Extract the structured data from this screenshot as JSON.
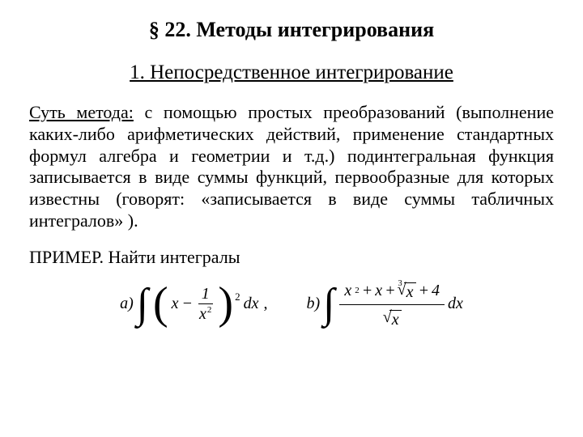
{
  "title": "§ 22.  Методы  интегрирования",
  "subtitle": "1.  Непосредственное интегрирование",
  "body_lead": "Суть метода:",
  "body_rest": " с помощью простых преобразований (выполнение каких-либо арифметических действий, применение стандартных формул алгебра и геометрии и т.д.) подинтегральная функция записывается в виде суммы функций, первообразные для которых известны (говорят: «записывается в виде суммы табличных интегралов» ).",
  "example_label": "ПРИМЕР. Найти интегралы",
  "fa_label": "a)",
  "fa_x": "x",
  "fa_minus": " − ",
  "fa_num": "1",
  "fa_den_x": "x",
  "fa_den_exp": "2",
  "fa_outer_exp": "2",
  "fa_dx": "dx",
  "fa_comma": ",",
  "fb_label": "b)",
  "fb_t1_x": "x",
  "fb_t1_exp": "2",
  "fb_plus1": " + ",
  "fb_t2": "x",
  "fb_plus2": " + ",
  "fb_root_idx": "3",
  "fb_root_body": "x",
  "fb_plus3": " + ",
  "fb_t4": "4",
  "fb_den_body": "x",
  "fb_dx": "dx"
}
